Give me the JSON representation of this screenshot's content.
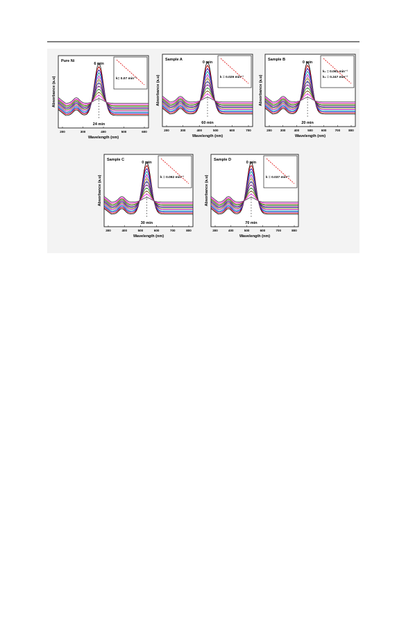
{
  "figure": {
    "panels": [
      {
        "title": "Pure Ni",
        "start_label": "6 min",
        "end_label": "24 min",
        "rates": [
          "k= 0.07 min⁻¹"
        ],
        "y_axis": "Absorbance (a.u)",
        "x_axis": "Wavelength (nm)",
        "x_ticks": [
          "200",
          "300",
          "400",
          "500",
          "600"
        ]
      },
      {
        "title": "Sample A",
        "start_label": "0 min",
        "end_label": "60 min",
        "rates": [
          "k = 0.029 min⁻¹"
        ],
        "y_axis": "Absorbance (a.u)",
        "x_axis": "Wavelength (nm)",
        "x_ticks": [
          "200",
          "300",
          "400",
          "500",
          "600",
          "700"
        ]
      },
      {
        "title": "Sample B",
        "start_label": "0 min",
        "end_label": "20 min",
        "rates": [
          "k₁ = 0.061 min⁻¹",
          "k₂ = 0.247 min⁻¹"
        ],
        "y_axis": "Absorbance (a.u)",
        "x_axis": "Wavelength (nm)",
        "x_ticks": [
          "200",
          "300",
          "400",
          "500",
          "600",
          "700",
          "800"
        ]
      },
      {
        "title": "Sample C",
        "start_label": "0 min",
        "end_label": "30 min",
        "rates": [
          "k = 0.092 min⁻¹"
        ],
        "y_axis": "Absorbance (a.u)",
        "x_axis": "Wavelength (nm)",
        "x_ticks": [
          "300",
          "400",
          "500",
          "600",
          "700",
          "800"
        ]
      },
      {
        "title": "Sample D",
        "start_label": "0 min",
        "end_label": "70 min",
        "rates": [
          "k = 0.037 min⁻¹"
        ],
        "y_axis": "Absorbance (a.u)",
        "x_axis": "Wavelength (nm)",
        "x_ticks": [
          "300",
          "400",
          "500",
          "600",
          "700",
          "800"
        ]
      }
    ]
  }
}
